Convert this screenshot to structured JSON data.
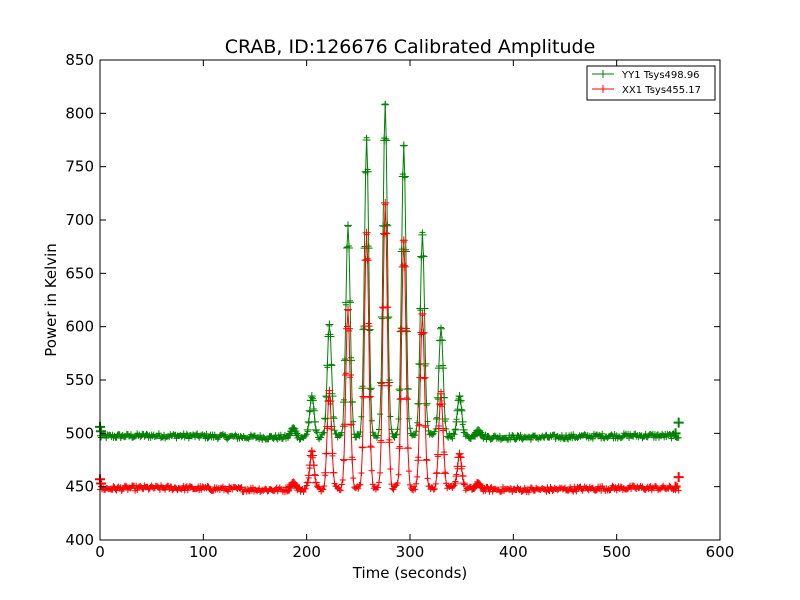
{
  "chart_data": {
    "type": "line",
    "title": "CRAB, ID:126676 Calibrated Amplitude",
    "xlabel": "Time (seconds)",
    "ylabel": "Power in Kelvin",
    "xlim": [
      0,
      600
    ],
    "ylim": [
      400,
      850
    ],
    "xticks": [
      0,
      100,
      200,
      300,
      400,
      500,
      600
    ],
    "yticks": [
      400,
      450,
      500,
      550,
      600,
      650,
      700,
      750,
      800,
      850
    ],
    "grid": false,
    "legend_position": "top-right",
    "marker": "plus",
    "series": [
      {
        "name": "YY1 Tsys498.96",
        "color": "#008000",
        "baseline": 497,
        "pulses": [
          {
            "t": 187,
            "peak": 505
          },
          {
            "t": 205,
            "peak": 535
          },
          {
            "t": 222,
            "peak": 602
          },
          {
            "t": 240,
            "peak": 695
          },
          {
            "t": 258,
            "peak": 775
          },
          {
            "t": 276,
            "peak": 808
          },
          {
            "t": 294,
            "peak": 770
          },
          {
            "t": 312,
            "peak": 686
          },
          {
            "t": 330,
            "peak": 598
          },
          {
            "t": 348,
            "peak": 535
          },
          {
            "t": 366,
            "peak": 503
          }
        ],
        "start_points": [
          {
            "t": 0,
            "y": 506
          },
          {
            "t": 1,
            "y": 502
          }
        ],
        "end_points": [
          {
            "t": 557,
            "y": 500
          },
          {
            "t": 560,
            "y": 510
          }
        ]
      },
      {
        "name": "XX1 Tsys455.17",
        "color": "#ff0000",
        "baseline": 448,
        "pulses": [
          {
            "t": 187,
            "peak": 454
          },
          {
            "t": 205,
            "peak": 483
          },
          {
            "t": 222,
            "peak": 540
          },
          {
            "t": 240,
            "peak": 616
          },
          {
            "t": 258,
            "peak": 688
          },
          {
            "t": 276,
            "peak": 716
          },
          {
            "t": 294,
            "peak": 681
          },
          {
            "t": 312,
            "peak": 612
          },
          {
            "t": 330,
            "peak": 537
          },
          {
            "t": 348,
            "peak": 481
          },
          {
            "t": 366,
            "peak": 453
          }
        ],
        "start_points": [
          {
            "t": 0,
            "y": 457
          },
          {
            "t": 1,
            "y": 453
          }
        ],
        "end_points": [
          {
            "t": 557,
            "y": 450
          },
          {
            "t": 560,
            "y": 459
          }
        ]
      }
    ]
  }
}
